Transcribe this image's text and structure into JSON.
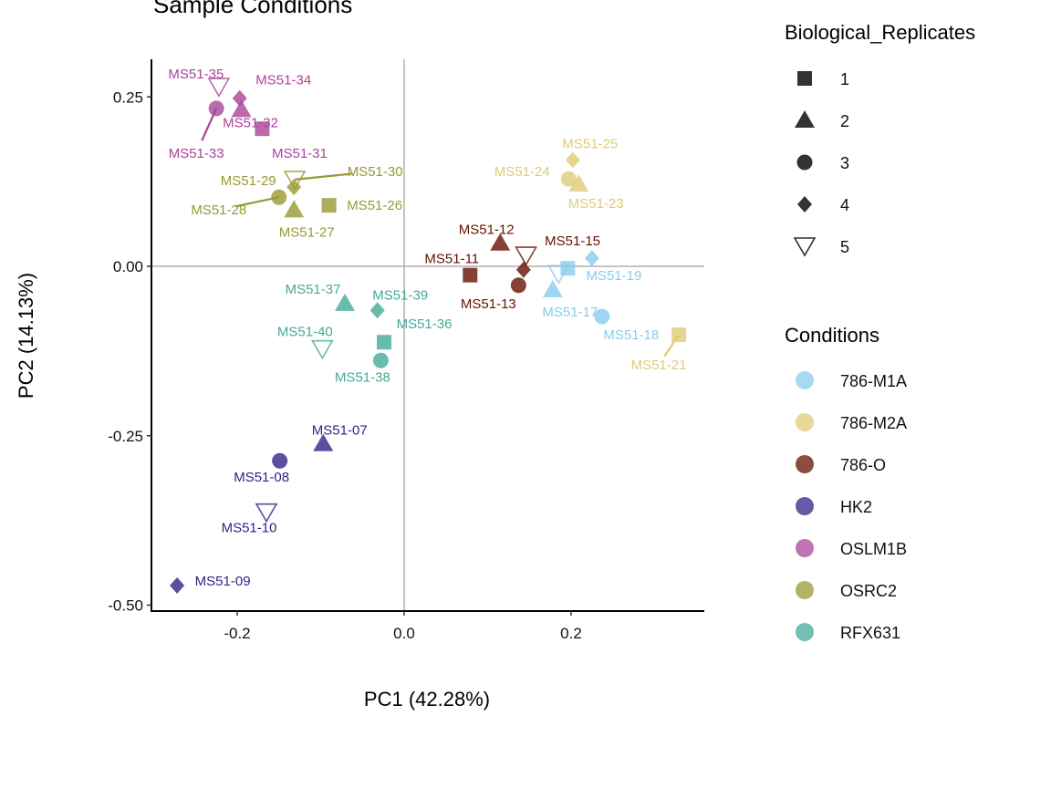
{
  "chart_data": {
    "type": "scatter",
    "title": "Sample Conditions",
    "xlabel": "PC1 (42.28%)",
    "ylabel": "PC2 (14.13%)",
    "xlim": [
      -0.303,
      0.36
    ],
    "ylim": [
      -0.51,
      0.305
    ],
    "xticks": [
      -0.2,
      0.0,
      0.2
    ],
    "xtick_labels": [
      "-0.2",
      "0.0",
      "0.2"
    ],
    "yticks": [
      0.25,
      0.0,
      -0.25,
      -0.5
    ],
    "ytick_labels": [
      "0.25",
      "0.00",
      "-0.25",
      "-0.50"
    ],
    "grid": false,
    "reference_lines": {
      "x": 0,
      "y": 0
    },
    "legend_placement": "right",
    "shape_legend": {
      "title": "Biological_Replicates",
      "items": [
        {
          "label": "1",
          "shape": "square"
        },
        {
          "label": "2",
          "shape": "triangle"
        },
        {
          "label": "3",
          "shape": "circle"
        },
        {
          "label": "4",
          "shape": "diamond"
        },
        {
          "label": "5",
          "shape": "triangle-down-open"
        }
      ]
    },
    "color_legend": {
      "title": "Conditions",
      "items": [
        {
          "label": "786-M1A",
          "color": "#88CCEE"
        },
        {
          "label": "786-M2A",
          "color": "#DDCC77"
        },
        {
          "label": "786-O",
          "color": "#661100"
        },
        {
          "label": "HK2",
          "color": "#332288"
        },
        {
          "label": "OSLM1B",
          "color": "#AA4499"
        },
        {
          "label": "OSRC2",
          "color": "#999933"
        },
        {
          "label": "RFX631",
          "color": "#44AA99"
        }
      ]
    },
    "points": [
      {
        "label": "MS51-31",
        "condition": "OSLM1B",
        "replicate": "1",
        "x": -0.17,
        "y": 0.203
      },
      {
        "label": "MS51-32",
        "condition": "OSLM1B",
        "replicate": "2",
        "x": -0.195,
        "y": 0.231
      },
      {
        "label": "MS51-33",
        "condition": "OSLM1B",
        "replicate": "3",
        "x": -0.225,
        "y": 0.233
      },
      {
        "label": "MS51-34",
        "condition": "OSLM1B",
        "replicate": "4",
        "x": -0.197,
        "y": 0.248
      },
      {
        "label": "MS51-35",
        "condition": "OSLM1B",
        "replicate": "5",
        "x": -0.222,
        "y": 0.265
      },
      {
        "label": "MS51-26",
        "condition": "OSRC2",
        "replicate": "1",
        "x": -0.09,
        "y": 0.09
      },
      {
        "label": "MS51-27",
        "condition": "OSRC2",
        "replicate": "2",
        "x": -0.132,
        "y": 0.083
      },
      {
        "label": "MS51-28",
        "condition": "OSRC2",
        "replicate": "3",
        "x": -0.15,
        "y": 0.102
      },
      {
        "label": "MS51-29",
        "condition": "OSRC2",
        "replicate": "4",
        "x": -0.132,
        "y": 0.117
      },
      {
        "label": "MS51-30",
        "condition": "OSRC2",
        "replicate": "5",
        "x": -0.131,
        "y": 0.128
      },
      {
        "label": "MS51-21",
        "condition": "786-M2A",
        "replicate": "1",
        "x": 0.329,
        "y": -0.101
      },
      {
        "label": "MS51-23",
        "condition": "786-M2A",
        "replicate": "2",
        "x": 0.209,
        "y": 0.121
      },
      {
        "label": "MS51-24",
        "condition": "786-M2A",
        "replicate": "3",
        "x": 0.197,
        "y": 0.129
      },
      {
        "label": "MS51-25",
        "condition": "786-M2A",
        "replicate": "4",
        "x": 0.202,
        "y": 0.157
      },
      {
        "label": "MS51-11",
        "condition": "786-O",
        "replicate": "1",
        "x": 0.079,
        "y": -0.013
      },
      {
        "label": "MS51-12",
        "condition": "786-O",
        "replicate": "2",
        "x": 0.115,
        "y": 0.034
      },
      {
        "label": "MS51-13",
        "condition": "786-O",
        "replicate": "3",
        "x": 0.137,
        "y": -0.028
      },
      {
        "label": "",
        "condition": "786-O",
        "replicate": "4",
        "x": 0.143,
        "y": -0.005
      },
      {
        "label": "MS51-15",
        "condition": "786-O",
        "replicate": "5",
        "x": 0.146,
        "y": 0.016
      },
      {
        "label": "",
        "condition": "786-M1A",
        "replicate": "1",
        "x": 0.196,
        "y": -0.003
      },
      {
        "label": "MS51-17",
        "condition": "786-M1A",
        "replicate": "2",
        "x": 0.178,
        "y": -0.035
      },
      {
        "label": "MS51-18",
        "condition": "786-M1A",
        "replicate": "3",
        "x": 0.237,
        "y": -0.074
      },
      {
        "label": "MS51-19",
        "condition": "786-M1A",
        "replicate": "4",
        "x": 0.225,
        "y": 0.012
      },
      {
        "label": "",
        "condition": "786-M1A",
        "replicate": "5",
        "x": 0.185,
        "y": -0.011
      },
      {
        "label": "MS51-36",
        "condition": "RFX631",
        "replicate": "1",
        "x": -0.024,
        "y": -0.112
      },
      {
        "label": "MS51-37",
        "condition": "RFX631",
        "replicate": "2",
        "x": -0.071,
        "y": -0.055
      },
      {
        "label": "MS51-38",
        "condition": "RFX631",
        "replicate": "3",
        "x": -0.028,
        "y": -0.139
      },
      {
        "label": "MS51-39",
        "condition": "RFX631",
        "replicate": "4",
        "x": -0.032,
        "y": -0.065
      },
      {
        "label": "MS51-40",
        "condition": "RFX631",
        "replicate": "5",
        "x": -0.098,
        "y": -0.122
      },
      {
        "label": "MS51-07",
        "condition": "HK2",
        "replicate": "2",
        "x": -0.097,
        "y": -0.262
      },
      {
        "label": "MS51-08",
        "condition": "HK2",
        "replicate": "3",
        "x": -0.149,
        "y": -0.287
      },
      {
        "label": "MS51-09",
        "condition": "HK2",
        "replicate": "4",
        "x": -0.272,
        "y": -0.471
      },
      {
        "label": "MS51-10",
        "condition": "HK2",
        "replicate": "5",
        "x": -0.165,
        "y": -0.363
      }
    ]
  }
}
